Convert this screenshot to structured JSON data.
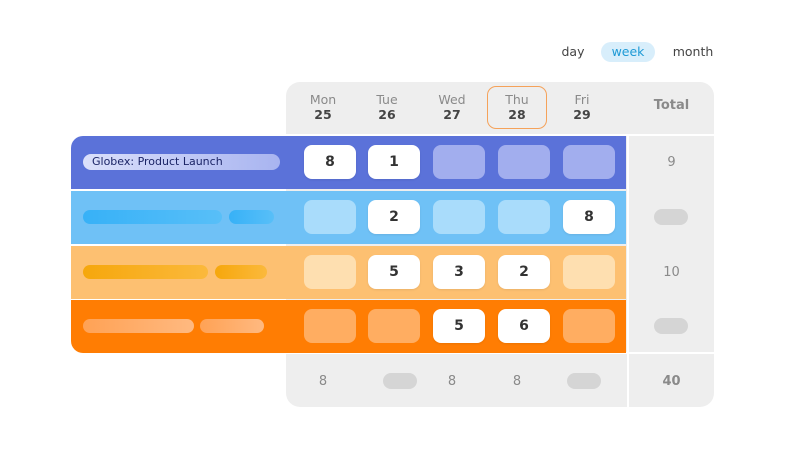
{
  "view_switcher": {
    "day": "day",
    "week": "week",
    "month": "month",
    "active": "week"
  },
  "days": [
    {
      "name": "Mon",
      "date": "25"
    },
    {
      "name": "Tue",
      "date": "26"
    },
    {
      "name": "Wed",
      "date": "27"
    },
    {
      "name": "Thu",
      "date": "28",
      "today": true
    },
    {
      "name": "Fri",
      "date": "29"
    }
  ],
  "total_header": "Total",
  "projects": [
    {
      "label": "Globex: Product Launch",
      "color": "#5b72d9",
      "hours": [
        "8",
        "1",
        "",
        "",
        ""
      ],
      "total": "9"
    },
    {
      "label": "",
      "color": "#6fc1f6",
      "hours": [
        "",
        "2",
        "",
        "",
        "8"
      ],
      "total": ""
    },
    {
      "label": "",
      "color": "#fdc071",
      "hours": [
        "",
        "5",
        "3",
        "2",
        ""
      ],
      "total": "10"
    },
    {
      "label": "",
      "color": "#ff7d03",
      "hours": [
        "",
        "",
        "5",
        "6",
        ""
      ],
      "total": ""
    }
  ],
  "day_totals": [
    "8",
    "",
    "8",
    "8",
    ""
  ],
  "grand_total": "40"
}
